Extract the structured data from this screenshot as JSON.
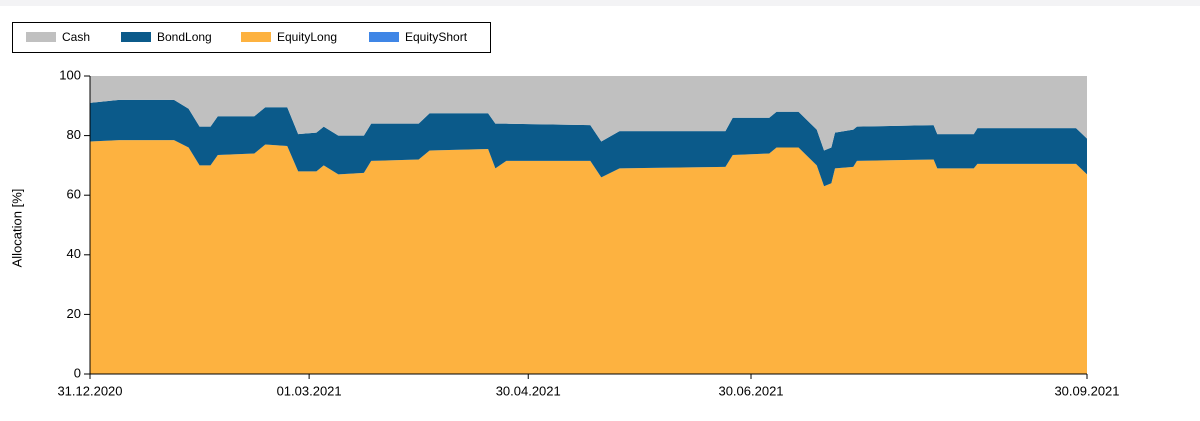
{
  "chart_data": {
    "type": "stacked_area",
    "ylabel": "Allocation [%]",
    "x": [
      "2020-12-31",
      "2021-01-08",
      "2021-01-23",
      "2021-01-27",
      "2021-01-30",
      "2021-02-02",
      "2021-02-04",
      "2021-02-14",
      "2021-02-17",
      "2021-02-23",
      "2021-02-26",
      "2021-03-03",
      "2021-03-05",
      "2021-03-09",
      "2021-03-16",
      "2021-03-18",
      "2021-03-31",
      "2021-04-03",
      "2021-04-19",
      "2021-04-21",
      "2021-04-24",
      "2021-05-17",
      "2021-05-20",
      "2021-05-25",
      "2021-06-23",
      "2021-06-25",
      "2021-07-05",
      "2021-07-07",
      "2021-07-13",
      "2021-07-18",
      "2021-07-20",
      "2021-07-22",
      "2021-07-23",
      "2021-07-28",
      "2021-07-29",
      "2021-08-19",
      "2021-08-20",
      "2021-08-30",
      "2021-08-31",
      "2021-09-27",
      "2021-09-30"
    ],
    "series": [
      {
        "name": "Cash",
        "color": "#c0c0c0",
        "values": [
          9,
          8,
          8,
          11,
          17,
          17,
          13.5,
          13.5,
          10.5,
          10.5,
          19.5,
          19,
          17,
          20,
          20,
          16,
          16,
          12.5,
          12.5,
          16,
          16,
          16.5,
          22,
          18.5,
          18.5,
          14,
          14,
          12,
          12,
          18,
          25,
          24,
          19,
          18,
          17,
          16.5,
          19.5,
          19.5,
          17.5,
          17.5,
          21
        ]
      },
      {
        "name": "BondLong",
        "color": "#0b5a8a",
        "values": [
          13,
          13.5,
          13.5,
          13,
          13,
          13,
          13,
          12.5,
          12.5,
          13,
          12.5,
          13,
          13,
          13,
          12.5,
          12.5,
          12,
          12.5,
          12,
          15,
          12.5,
          12,
          12,
          12.5,
          12,
          12.5,
          12,
          12,
          12,
          12,
          12,
          12,
          12,
          12.5,
          11.5,
          11.5,
          11.5,
          11.5,
          12,
          12,
          12
        ]
      },
      {
        "name": "EquityLong",
        "color": "#fdb240",
        "values": [
          78,
          78.5,
          78.5,
          76,
          70,
          70,
          73.5,
          74,
          77,
          76.5,
          68,
          68,
          70,
          67,
          67.5,
          71.5,
          72,
          75,
          75.5,
          69,
          71.5,
          71.5,
          66,
          69,
          69.5,
          73.5,
          74,
          76,
          76,
          70,
          63,
          64,
          69,
          69.5,
          71.5,
          72,
          69,
          69,
          70.5,
          70.5,
          67
        ]
      },
      {
        "name": "EquityShort",
        "color": "#3f86e6",
        "values": [
          0,
          0,
          0,
          0,
          0,
          0,
          0,
          0,
          0,
          0,
          0,
          0,
          0,
          0,
          0,
          0,
          0,
          0,
          0,
          0,
          0,
          0,
          0,
          0,
          0,
          0,
          0,
          0,
          0,
          0,
          0,
          0,
          0,
          0,
          0,
          0,
          0,
          0,
          0,
          0,
          0
        ]
      }
    ],
    "xlim": [
      "2020-12-31",
      "2021-09-30"
    ],
    "xticks": [
      {
        "value": "2020-12-31",
        "label": "31.12.2020"
      },
      {
        "value": "2021-03-01",
        "label": "01.03.2021"
      },
      {
        "value": "2021-04-30",
        "label": "30.04.2021"
      },
      {
        "value": "2021-06-30",
        "label": "30.06.2021"
      },
      {
        "value": "2021-09-30",
        "label": "30.09.2021"
      }
    ],
    "ylim": [
      0,
      100
    ],
    "yticks": [
      0,
      20,
      40,
      60,
      80,
      100
    ],
    "legend": "top-left"
  }
}
